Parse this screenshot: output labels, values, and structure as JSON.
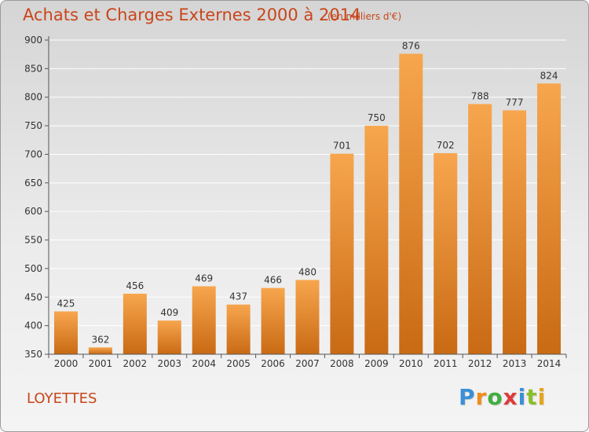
{
  "title": "Achats et Charges Externes 2000 à 2014",
  "subtitle": "(en milliers d'€)",
  "commune": "LOYETTES",
  "logo": {
    "letters": [
      "P",
      "r",
      "o",
      "x",
      "i",
      "t",
      "i"
    ],
    "colors": [
      "#3a8fd8",
      "#f08c1a",
      "#3fae3f",
      "#e03a3a",
      "#3a8fd8",
      "#8bbf2a",
      "#e8a317"
    ]
  },
  "colors": {
    "bar_light": "#f7a64e",
    "bar_dark": "#c96a14",
    "text_accent": "#c8461b"
  },
  "chart_data": {
    "type": "bar",
    "categories": [
      "2000",
      "2001",
      "2002",
      "2003",
      "2004",
      "2005",
      "2006",
      "2007",
      "2008",
      "2009",
      "2010",
      "2011",
      "2012",
      "2013",
      "2014"
    ],
    "values": [
      425,
      362,
      456,
      409,
      469,
      437,
      466,
      480,
      701,
      750,
      876,
      702,
      788,
      777,
      824
    ],
    "yticks": [
      350,
      400,
      450,
      500,
      550,
      600,
      650,
      700,
      750,
      800,
      850,
      900
    ],
    "ylim": [
      350,
      900
    ],
    "grid": true,
    "xlabel": "",
    "ylabel": ""
  }
}
